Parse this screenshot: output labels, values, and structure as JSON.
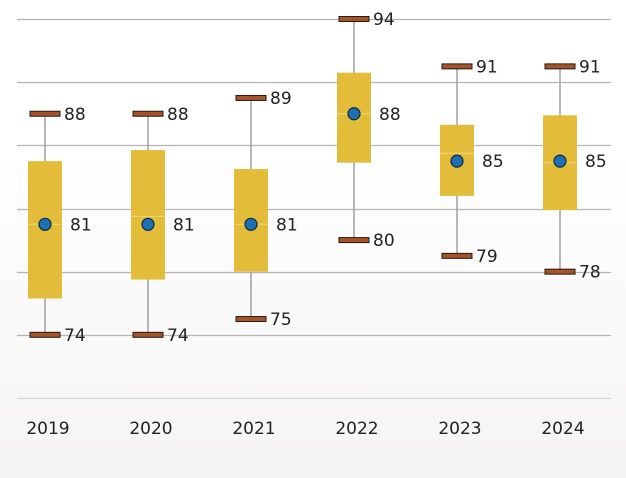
{
  "chart_data": {
    "type": "box",
    "title": "",
    "xlabel": "",
    "ylabel": "",
    "categories": [
      "2019",
      "2020",
      "2021",
      "2022",
      "2023",
      "2024"
    ],
    "ylim": [
      70,
      94
    ],
    "yticks": [
      70,
      74,
      78,
      82,
      86,
      90,
      94
    ],
    "grid": true,
    "y_tick_labels_shown": false,
    "series": [
      {
        "category": "2019",
        "min": 74,
        "q1": 76.3,
        "median": 81.0,
        "q3": 85.0,
        "max": 88,
        "mean": 81
      },
      {
        "category": "2020",
        "min": 74,
        "q1": 77.5,
        "median": 81.5,
        "q3": 85.7,
        "max": 88,
        "mean": 81
      },
      {
        "category": "2021",
        "min": 75,
        "q1": 78.0,
        "median": 81.0,
        "q3": 84.5,
        "max": 89,
        "mean": 81
      },
      {
        "category": "2022",
        "min": 80,
        "q1": 84.9,
        "median": 88.0,
        "q3": 90.6,
        "max": 94,
        "mean": 88
      },
      {
        "category": "2023",
        "min": 79,
        "q1": 82.8,
        "median": 85.5,
        "q3": 87.3,
        "max": 91,
        "mean": 85
      },
      {
        "category": "2024",
        "min": 78,
        "q1": 81.9,
        "median": 84.9,
        "q3": 87.9,
        "max": 91,
        "mean": 85
      }
    ],
    "colors": {
      "box": "#e3bd3a",
      "whisker_cap": "#a5532a",
      "mean_marker": "#1f6fb5",
      "whisker": "#a0a0a0",
      "grid": "#b4b4b8"
    }
  }
}
